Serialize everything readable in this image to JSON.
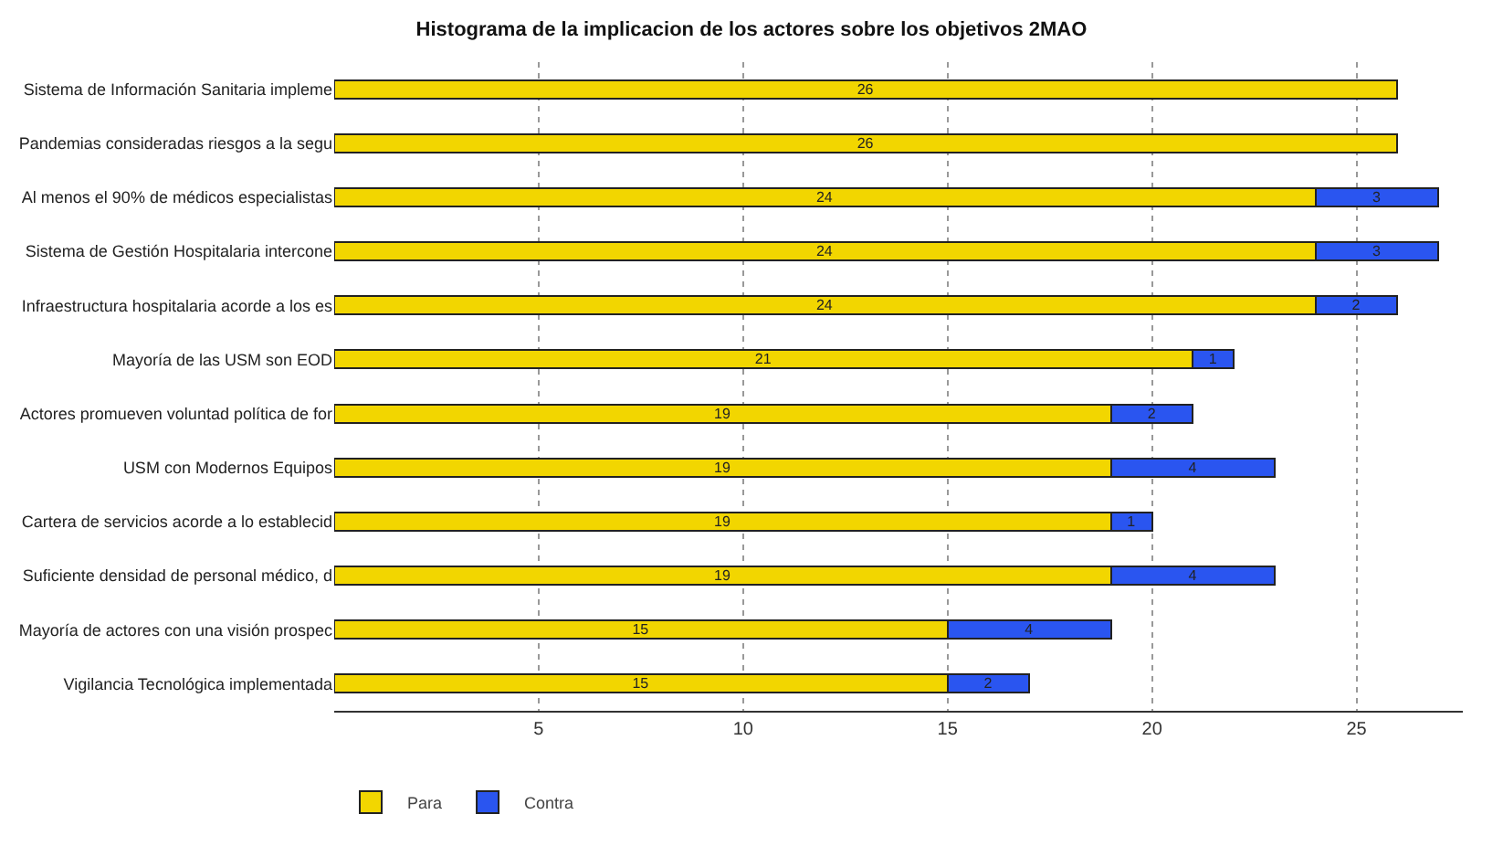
{
  "chart_data": {
    "type": "bar",
    "orientation": "horizontal",
    "stacked": true,
    "title": "Histograma de la implicacion de los actores sobre los objetivos 2MAO",
    "categories": [
      "Sistema de Información Sanitaria impleme",
      "Pandemias consideradas riesgos a la segu",
      "Al menos el 90% de médicos especialistas",
      "Sistema de Gestión Hospitalaria intercone",
      "Infraestructura hospitalaria acorde a los es",
      "Mayoría de las USM son EOD",
      "Actores promueven voluntad política de for",
      "USM con Modernos Equipos",
      "Cartera de servicios acorde a lo establecid",
      "Suficiente densidad de personal médico, d",
      "Mayoría de actores con una visión prospec",
      "Vigilancia Tecnológica implementada"
    ],
    "series": [
      {
        "name": "Para",
        "color": "#f2d600",
        "values": [
          26,
          26,
          24,
          24,
          24,
          21,
          19,
          19,
          19,
          19,
          15,
          15
        ]
      },
      {
        "name": "Contra",
        "color": "#2a55f0",
        "values": [
          null,
          null,
          3,
          3,
          2,
          1,
          2,
          4,
          1,
          4,
          4,
          2
        ]
      }
    ],
    "xlim": [
      0,
      27.6
    ],
    "xticks": [
      5,
      10,
      15,
      20,
      25
    ],
    "grid": "x",
    "legend": "bottom left",
    "data_labels": true
  }
}
